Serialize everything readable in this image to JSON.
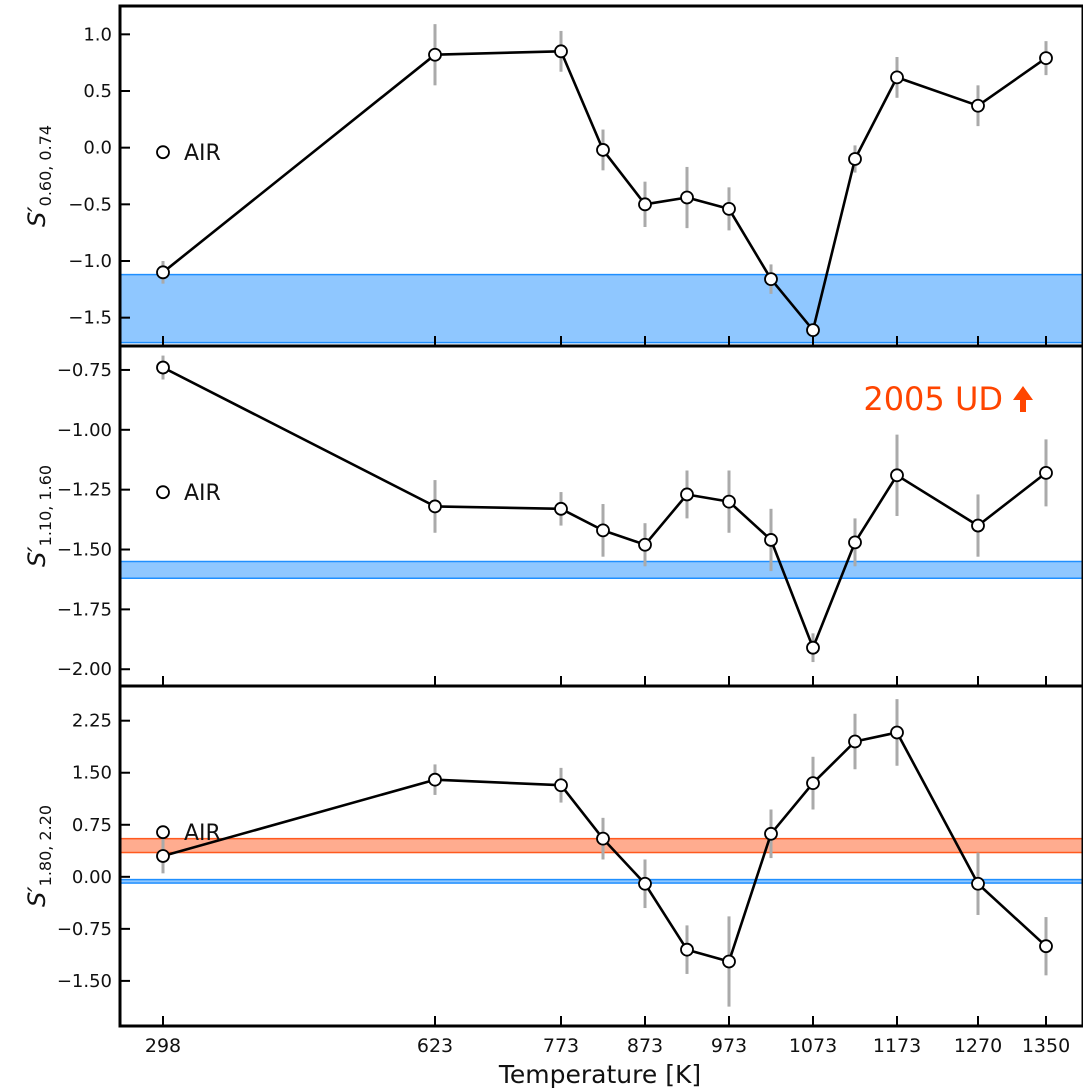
{
  "figure": {
    "xlabel": "Temperature [K]",
    "xtick_labels": [
      "298",
      "623",
      "773",
      "873",
      "973",
      "1073",
      "1173",
      "1270",
      "1350"
    ],
    "colors": {
      "line": "#000000",
      "marker_fill": "#ffffff",
      "errorbar": "#aaaaaa",
      "blue_band": "#1f8fff",
      "red_band": "#ff5a1f",
      "annotation": "#ff4500"
    }
  },
  "chart_data": [
    {
      "type": "line",
      "ylabel_main": "S′",
      "ylabel_sub": "0.60, 0.74",
      "ylim": [
        -1.75,
        1.25
      ],
      "yticks": [
        -1.5,
        -1.0,
        -0.5,
        0.0,
        0.5,
        1.0
      ],
      "ytick_labels": [
        "−1.5",
        "−1.0",
        "−0.5",
        "0.0",
        "0.5",
        "1.0"
      ],
      "x": [
        298,
        623,
        773,
        823,
        873,
        923,
        973,
        1023,
        1073,
        1123,
        1173,
        1270,
        1350
      ],
      "y": [
        -1.1,
        0.82,
        0.85,
        -0.02,
        -0.5,
        -0.44,
        -0.54,
        -1.16,
        -1.61,
        -0.1,
        0.62,
        0.37,
        0.79
      ],
      "yerr": [
        0.1,
        0.27,
        0.18,
        0.18,
        0.2,
        0.27,
        0.19,
        0.13,
        0.05,
        0.12,
        0.18,
        0.18,
        0.15
      ],
      "bands": [
        {
          "y0": -1.72,
          "y1": -1.12,
          "color": "blue"
        }
      ],
      "legend": {
        "label": "AIR",
        "location": "left"
      }
    },
    {
      "type": "line",
      "ylabel_main": "S′",
      "ylabel_sub": "1.10, 1.60",
      "ylim": [
        -2.07,
        -0.65
      ],
      "yticks": [
        -2.0,
        -1.75,
        -1.5,
        -1.25,
        -1.0,
        -0.75
      ],
      "ytick_labels": [
        "−2.00",
        "−1.75",
        "−1.50",
        "−1.25",
        "−1.00",
        "−0.75"
      ],
      "x": [
        298,
        623,
        773,
        823,
        873,
        923,
        973,
        1023,
        1073,
        1123,
        1173,
        1270,
        1350
      ],
      "y": [
        -0.74,
        -1.32,
        -1.33,
        -1.42,
        -1.48,
        -1.27,
        -1.3,
        -1.46,
        -1.91,
        -1.47,
        -1.19,
        -1.4,
        -1.18
      ],
      "yerr": [
        0.05,
        0.11,
        0.07,
        0.11,
        0.09,
        0.1,
        0.13,
        0.13,
        0.06,
        0.1,
        0.17,
        0.13,
        0.14
      ],
      "bands": [
        {
          "y0": -1.62,
          "y1": -1.55,
          "color": "blue"
        }
      ],
      "legend": {
        "label": "AIR",
        "location": "left"
      },
      "annotation": "2005 UD"
    },
    {
      "type": "line",
      "ylabel_main": "S′",
      "ylabel_sub": "1.80, 2.20",
      "ylim": [
        -2.15,
        2.75
      ],
      "yticks": [
        -1.5,
        -0.75,
        0.0,
        0.75,
        1.5,
        2.25
      ],
      "ytick_labels": [
        "−1.50",
        "−0.75",
        "0.00",
        "0.75",
        "1.50",
        "2.25"
      ],
      "x": [
        298,
        623,
        773,
        823,
        873,
        923,
        973,
        1023,
        1073,
        1123,
        1173,
        1270,
        1350
      ],
      "y": [
        0.3,
        1.4,
        1.32,
        0.55,
        -0.1,
        -1.05,
        -1.22,
        0.62,
        1.35,
        1.95,
        2.08,
        -0.1,
        -1.0
      ],
      "yerr": [
        0.25,
        0.22,
        0.25,
        0.3,
        0.35,
        0.35,
        0.65,
        0.35,
        0.38,
        0.4,
        0.48,
        0.45,
        0.42
      ],
      "bands": [
        {
          "y0": 0.35,
          "y1": 0.55,
          "color": "red"
        },
        {
          "y0": -0.09,
          "y1": -0.04,
          "color": "blue"
        }
      ],
      "legend": {
        "label": "AIR",
        "location": "left"
      }
    }
  ]
}
